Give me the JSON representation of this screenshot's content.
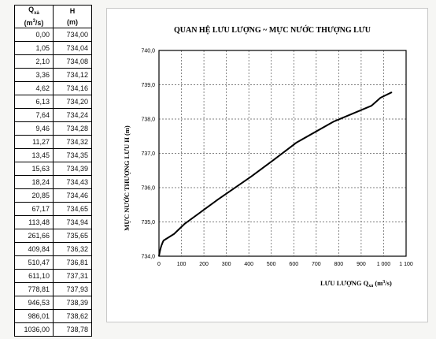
{
  "table": {
    "header_q": "Q",
    "header_q_sub": "xả",
    "header_q_unit_prefix": "(m",
    "header_q_unit_sup": "3",
    "header_q_unit_suffix": "/s)",
    "header_h": "H",
    "header_h_unit": "(m)",
    "rows": [
      [
        "0,00",
        "734,00"
      ],
      [
        "1,05",
        "734,04"
      ],
      [
        "2,10",
        "734,08"
      ],
      [
        "3,36",
        "734,12"
      ],
      [
        "4,62",
        "734,16"
      ],
      [
        "6,13",
        "734,20"
      ],
      [
        "7,64",
        "734,24"
      ],
      [
        "9,46",
        "734,28"
      ],
      [
        "11,27",
        "734,32"
      ],
      [
        "13,45",
        "734,35"
      ],
      [
        "15,63",
        "734,39"
      ],
      [
        "18,24",
        "734,43"
      ],
      [
        "20,85",
        "734,46"
      ],
      [
        "67,17",
        "734,65"
      ],
      [
        "113,48",
        "734,94"
      ],
      [
        "261,66",
        "735,65"
      ],
      [
        "409,84",
        "736,32"
      ],
      [
        "510,47",
        "736,81"
      ],
      [
        "611,10",
        "737,31"
      ],
      [
        "778,81",
        "737,93"
      ],
      [
        "946,53",
        "738,39"
      ],
      [
        "986,01",
        "738,62"
      ],
      [
        "1036,00",
        "738,78"
      ]
    ]
  },
  "chart_data": {
    "type": "line",
    "title": "QUAN HỆ LƯU LƯỢNG ~ MỰC NƯỚC THƯỢNG LƯU",
    "xlabel_main": "LƯU LƯỢNG Q",
    "xlabel_sub": "xả",
    "xlabel_unit_prefix": " (m",
    "xlabel_unit_sup": "3",
    "xlabel_unit_suffix": "/s)",
    "ylabel": "MỰC NƯỚC THƯỢNG LƯU H (m)",
    "xlim": [
      0,
      1100
    ],
    "ylim": [
      734.0,
      740.0
    ],
    "x_ticks": [
      "0",
      "100",
      "200",
      "300",
      "400",
      "500",
      "600",
      "700",
      "800",
      "900",
      "1 000",
      "1 100"
    ],
    "y_ticks": [
      "734,0",
      "735,0",
      "736,0",
      "737,0",
      "738,0",
      "739,0",
      "740,0"
    ],
    "grid": true,
    "line_color": "#000000",
    "x": [
      0,
      1.05,
      2.1,
      3.36,
      4.62,
      6.13,
      7.64,
      9.46,
      11.27,
      13.45,
      15.63,
      18.24,
      20.85,
      67.17,
      113.48,
      261.66,
      409.84,
      510.47,
      611.1,
      778.81,
      946.53,
      986.01,
      1036.0
    ],
    "y": [
      734.0,
      734.04,
      734.08,
      734.12,
      734.16,
      734.2,
      734.24,
      734.28,
      734.32,
      734.35,
      734.39,
      734.43,
      734.46,
      734.65,
      734.94,
      735.65,
      736.32,
      736.81,
      737.31,
      737.93,
      738.39,
      738.62,
      738.78
    ]
  }
}
